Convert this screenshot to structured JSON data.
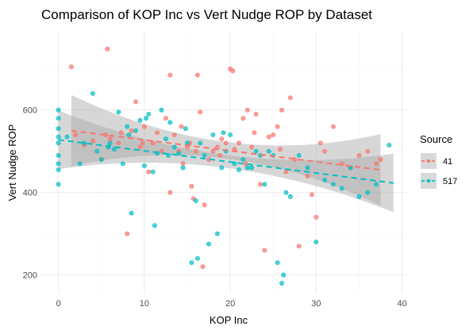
{
  "chart_data": {
    "type": "scatter",
    "title": "Comparison of KOP Inc vs Vert Nudge ROP by Dataset",
    "xlabel": "KOP Inc",
    "ylabel": "Vert Nudge ROP",
    "xlim": [
      -2,
      40.5
    ],
    "ylim": [
      155,
      790
    ],
    "x_ticks": [
      0,
      10,
      20,
      30,
      40
    ],
    "y_ticks": [
      200,
      400,
      600
    ],
    "grid": true,
    "legend": {
      "title": "Source",
      "position": "right"
    },
    "series": [
      {
        "name": "41",
        "color": "#F8766D",
        "points": [
          [
            1.5,
            705
          ],
          [
            5.7,
            748
          ],
          [
            2,
            540
          ],
          [
            3,
            515
          ],
          [
            4,
            525
          ],
          [
            5,
            480
          ],
          [
            5.5,
            540
          ],
          [
            6,
            530
          ],
          [
            7,
            520
          ],
          [
            7.3,
            545
          ],
          [
            8.5,
            550
          ],
          [
            9,
            620
          ],
          [
            9.5,
            510
          ],
          [
            10,
            560
          ],
          [
            11,
            520
          ],
          [
            11.5,
            545
          ],
          [
            12,
            500
          ],
          [
            12.5,
            580
          ],
          [
            13,
            685
          ],
          [
            13,
            400
          ],
          [
            13.5,
            540
          ],
          [
            14,
            500
          ],
          [
            14.5,
            470
          ],
          [
            15,
            510
          ],
          [
            15.5,
            415
          ],
          [
            15.7,
            385
          ],
          [
            16,
            500
          ],
          [
            16.2,
            685
          ],
          [
            16.5,
            595
          ],
          [
            16.8,
            220
          ],
          [
            17,
            370
          ],
          [
            17.5,
            480
          ],
          [
            18,
            500
          ],
          [
            18.5,
            510
          ],
          [
            19,
            530
          ],
          [
            19.5,
            520
          ],
          [
            20,
            700
          ],
          [
            20.3,
            695
          ],
          [
            20.5,
            505
          ],
          [
            21,
            520
          ],
          [
            21.5,
            580
          ],
          [
            22,
            600
          ],
          [
            22.5,
            510
          ],
          [
            22.8,
            545
          ],
          [
            23,
            590
          ],
          [
            23.5,
            420
          ],
          [
            24,
            260
          ],
          [
            24.5,
            535
          ],
          [
            25,
            540
          ],
          [
            25.5,
            560
          ],
          [
            26,
            600
          ],
          [
            26.5,
            450
          ],
          [
            27,
            630
          ],
          [
            27.5,
            480
          ],
          [
            28,
            270
          ],
          [
            29,
            440
          ],
          [
            29.5,
            395
          ],
          [
            30,
            340
          ],
          [
            30.5,
            520
          ],
          [
            31,
            500
          ],
          [
            32,
            560
          ],
          [
            33,
            470
          ],
          [
            34,
            460
          ],
          [
            35,
            490
          ],
          [
            36,
            500
          ],
          [
            37,
            470
          ],
          [
            37.5,
            480
          ],
          [
            8,
            300
          ],
          [
            10.5,
            450
          ],
          [
            14.3,
            560
          ],
          [
            18.8,
            490
          ],
          [
            21.8,
            470
          ],
          [
            25.8,
            505
          ],
          [
            9.8,
            520
          ],
          [
            15.3,
            520
          ]
        ]
      },
      {
        "name": "517",
        "color": "#00BFC4",
        "points": [
          [
            0,
            600
          ],
          [
            0,
            580
          ],
          [
            0,
            535
          ],
          [
            0,
            520
          ],
          [
            0,
            490
          ],
          [
            0,
            470
          ],
          [
            0,
            455
          ],
          [
            0,
            420
          ],
          [
            0,
            555
          ],
          [
            1,
            535
          ],
          [
            3,
            520
          ],
          [
            4,
            640
          ],
          [
            4.5,
            500
          ],
          [
            5,
            480
          ],
          [
            6,
            520
          ],
          [
            6.5,
            505
          ],
          [
            7,
            595
          ],
          [
            7.5,
            470
          ],
          [
            8,
            560
          ],
          [
            8.5,
            350
          ],
          [
            9,
            550
          ],
          [
            9.5,
            575
          ],
          [
            10,
            465
          ],
          [
            10.5,
            590
          ],
          [
            11,
            450
          ],
          [
            11.5,
            495
          ],
          [
            12,
            600
          ],
          [
            12.5,
            530
          ],
          [
            13,
            570
          ],
          [
            13.5,
            510
          ],
          [
            14,
            495
          ],
          [
            14.5,
            460
          ],
          [
            15,
            520
          ],
          [
            15.5,
            230
          ],
          [
            16,
            380
          ],
          [
            16.5,
            520
          ],
          [
            17,
            490
          ],
          [
            17.5,
            275
          ],
          [
            18,
            540
          ],
          [
            18.5,
            300
          ],
          [
            19,
            460
          ],
          [
            19.5,
            500
          ],
          [
            20,
            540
          ],
          [
            20.5,
            470
          ],
          [
            21,
            455
          ],
          [
            21.5,
            480
          ],
          [
            22,
            460
          ],
          [
            22.5,
            460
          ],
          [
            23,
            500
          ],
          [
            23.5,
            490
          ],
          [
            24,
            420
          ],
          [
            24.5,
            500
          ],
          [
            25,
            490
          ],
          [
            25.5,
            230
          ],
          [
            26,
            180
          ],
          [
            26.2,
            200
          ],
          [
            26.5,
            400
          ],
          [
            27,
            390
          ],
          [
            28,
            490
          ],
          [
            29,
            460
          ],
          [
            30,
            280
          ],
          [
            31,
            430
          ],
          [
            32,
            420
          ],
          [
            33,
            410
          ],
          [
            34,
            460
          ],
          [
            35,
            390
          ],
          [
            36,
            400
          ],
          [
            37,
            420
          ],
          [
            38.5,
            515
          ],
          [
            11.2,
            320
          ],
          [
            16.2,
            240
          ],
          [
            12.8,
            490
          ],
          [
            8.2,
            540
          ],
          [
            10.2,
            580
          ],
          [
            19.2,
            545
          ],
          [
            5.8,
            510
          ],
          [
            2.5,
            470
          ],
          [
            14.8,
            555
          ]
        ]
      }
    ],
    "trend_lines": [
      {
        "series": "41",
        "x_range": [
          1.5,
          37.5
        ],
        "y_range": [
          550,
          455
        ]
      },
      {
        "series": "517",
        "x_range": [
          0,
          39
        ],
        "y_range": [
          528,
          423
        ]
      }
    ]
  }
}
